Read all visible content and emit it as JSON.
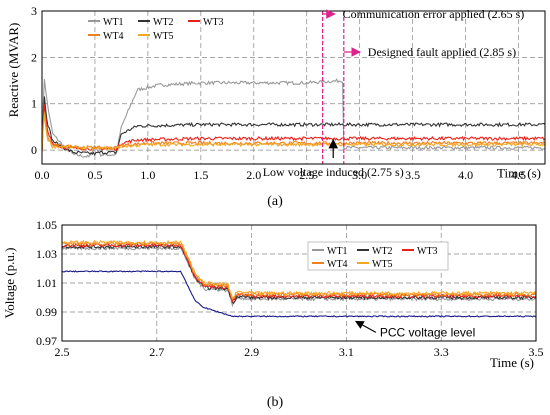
{
  "chart_data": [
    {
      "type": "line",
      "panel": "(a)",
      "xlabel": "Time (s)",
      "ylabel": "Reactive (MVAR)",
      "xlim": [
        0,
        4.75
      ],
      "ylim": [
        -0.3,
        3
      ],
      "x_ticks": [
        "0.0",
        "0.5",
        "1.0",
        "1.5",
        "2.0",
        "2.5",
        "3.0",
        "3.5",
        "4.0",
        "4.5"
      ],
      "x_tick_values": [
        0,
        0.5,
        1.0,
        1.5,
        2.0,
        2.5,
        3.0,
        3.5,
        4.0,
        4.5
      ],
      "y_ticks": [
        "0",
        "1",
        "2",
        "3"
      ],
      "y_tick_values": [
        0,
        1,
        2,
        3
      ],
      "grid": true,
      "legend_position": "top-left",
      "series": [
        {
          "name": "WT1",
          "color": "#999999",
          "x": [
            0,
            0.02,
            0.05,
            0.1,
            0.2,
            0.3,
            0.45,
            0.5,
            0.55,
            0.7,
            0.75,
            0.9,
            1.1,
            1.5,
            2.0,
            2.5,
            2.84,
            2.85,
            2.9,
            3.5,
            4.0,
            4.5,
            4.75
          ],
          "y": [
            0,
            1.6,
            1.0,
            0.35,
            0.1,
            -0.1,
            -0.15,
            0.1,
            -0.1,
            -0.1,
            0.5,
            1.3,
            1.4,
            1.45,
            1.45,
            1.45,
            1.5,
            0.05,
            0.05,
            0.05,
            0.05,
            0.05,
            0.05
          ]
        },
        {
          "name": "WT2",
          "color": "#333333",
          "x": [
            0,
            0.02,
            0.05,
            0.1,
            0.2,
            0.3,
            0.5,
            0.55,
            0.7,
            0.75,
            0.9,
            1.5,
            2.0,
            2.5,
            3.0,
            3.5,
            4.0,
            4.5,
            4.75
          ],
          "y": [
            0,
            1.2,
            0.6,
            0.2,
            0.05,
            -0.05,
            -0.08,
            -0.05,
            -0.05,
            0.35,
            0.52,
            0.55,
            0.55,
            0.55,
            0.55,
            0.55,
            0.55,
            0.55,
            0.55
          ]
        },
        {
          "name": "WT3",
          "color": "#e8201a",
          "x": [
            0,
            0.02,
            0.05,
            0.1,
            0.2,
            0.5,
            0.7,
            0.75,
            0.9,
            1.5,
            2.0,
            2.5,
            3.0,
            3.5,
            4.0,
            4.5,
            4.75
          ],
          "y": [
            0,
            1.0,
            0.4,
            0.15,
            0.05,
            0.03,
            0.03,
            0.15,
            0.22,
            0.25,
            0.25,
            0.25,
            0.25,
            0.25,
            0.25,
            0.25,
            0.25
          ]
        },
        {
          "name": "WT4",
          "color": "#f07f1e",
          "x": [
            0,
            0.02,
            0.05,
            0.1,
            0.5,
            0.7,
            0.75,
            1.0,
            1.5,
            2.0,
            2.5,
            3.0,
            3.5,
            4.0,
            4.5,
            4.75
          ],
          "y": [
            0,
            0.9,
            0.3,
            0.1,
            0.05,
            0.05,
            0.1,
            0.15,
            0.15,
            0.15,
            0.15,
            0.15,
            0.15,
            0.15,
            0.15,
            0.15
          ]
        },
        {
          "name": "WT5",
          "color": "#f5a623",
          "x": [
            0,
            0.02,
            0.05,
            0.1,
            0.5,
            0.7,
            0.75,
            1.0,
            1.5,
            2.0,
            2.5,
            3.0,
            3.5,
            4.0,
            4.5,
            4.75
          ],
          "y": [
            0,
            0.8,
            0.25,
            0.08,
            0.04,
            0.04,
            0.08,
            0.12,
            0.12,
            0.12,
            0.12,
            0.12,
            0.12,
            0.12,
            0.12,
            0.12
          ]
        }
      ],
      "markers": [
        {
          "x": 2.65,
          "color": "#e0208a",
          "label": "Communication error applied (2.65 s)"
        },
        {
          "x": 2.75,
          "color": "#000000",
          "label": "Low voltage induced (2.75 s)"
        },
        {
          "x": 2.85,
          "color": "#e0208a",
          "label": "Designed fault applied (2.85 s)"
        }
      ]
    },
    {
      "type": "line",
      "panel": "(b)",
      "xlabel": "Time (s)",
      "ylabel": "Voltage (p.u.)",
      "xlim": [
        2.5,
        3.5
      ],
      "ylim": [
        0.97,
        1.05
      ],
      "x_ticks": [
        "2.5",
        "2.7",
        "2.9",
        "3.1",
        "3.3",
        "3.5"
      ],
      "x_tick_values": [
        2.5,
        2.7,
        2.9,
        3.1,
        3.3,
        3.5
      ],
      "y_ticks": [
        "0.97",
        "0.99",
        "1.01",
        "1.03",
        "1.05"
      ],
      "y_tick_values": [
        0.97,
        0.99,
        1.01,
        1.03,
        1.05
      ],
      "grid": true,
      "legend_position": "top-right",
      "series": [
        {
          "name": "WT1",
          "color": "#999999",
          "x": [
            2.5,
            2.75,
            2.76,
            2.78,
            2.8,
            2.85,
            2.86,
            2.87,
            2.9,
            3.0,
            3.5
          ],
          "y": [
            1.034,
            1.034,
            1.028,
            1.013,
            1.006,
            1.005,
            0.995,
            1.0,
            0.999,
            0.999,
            0.999
          ]
        },
        {
          "name": "WT2",
          "color": "#333333",
          "x": [
            2.5,
            2.75,
            2.76,
            2.78,
            2.8,
            2.85,
            2.86,
            2.87,
            2.9,
            3.0,
            3.5
          ],
          "y": [
            1.035,
            1.035,
            1.029,
            1.014,
            1.007,
            1.006,
            0.996,
            1.001,
            1.0,
            1.0,
            1.0
          ]
        },
        {
          "name": "WT3",
          "color": "#e8201a",
          "x": [
            2.5,
            2.75,
            2.76,
            2.78,
            2.8,
            2.85,
            2.86,
            2.87,
            2.9,
            3.0,
            3.5
          ],
          "y": [
            1.036,
            1.036,
            1.03,
            1.015,
            1.008,
            1.007,
            0.997,
            1.002,
            1.001,
            1.001,
            1.001
          ]
        },
        {
          "name": "WT4",
          "color": "#f07f1e",
          "x": [
            2.5,
            2.75,
            2.76,
            2.78,
            2.8,
            2.85,
            2.86,
            2.87,
            2.9,
            3.0,
            3.5
          ],
          "y": [
            1.037,
            1.037,
            1.031,
            1.016,
            1.009,
            1.008,
            0.998,
            1.003,
            1.002,
            1.002,
            1.002
          ]
        },
        {
          "name": "WT5",
          "color": "#f5a623",
          "x": [
            2.5,
            2.75,
            2.76,
            2.78,
            2.8,
            2.85,
            2.86,
            2.87,
            2.9,
            3.0,
            3.5
          ],
          "y": [
            1.038,
            1.038,
            1.032,
            1.017,
            1.01,
            1.009,
            0.999,
            1.004,
            1.003,
            1.003,
            1.003
          ]
        },
        {
          "name": "PCC voltage level",
          "color": "#1a1a8c",
          "x": [
            2.5,
            2.75,
            2.76,
            2.78,
            2.8,
            2.84,
            2.86,
            2.9,
            3.0,
            3.5
          ],
          "y": [
            1.018,
            1.018,
            1.012,
            0.998,
            0.993,
            0.989,
            0.987,
            0.987,
            0.987,
            0.987
          ]
        }
      ],
      "annotations": [
        {
          "text": "PCC voltage level",
          "x": 3.12,
          "y": 0.987
        }
      ]
    }
  ]
}
